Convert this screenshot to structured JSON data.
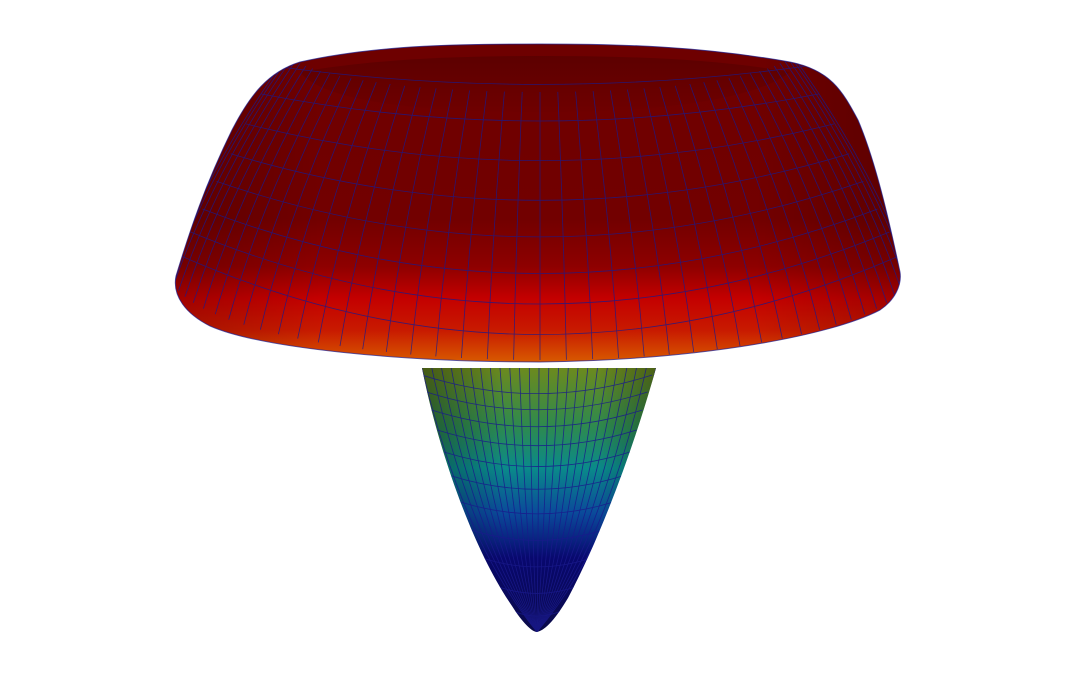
{
  "scene": {
    "background": "#ffffff",
    "colors": {
      "rim_top": "#6b0000",
      "rim_mid": "#7a0000",
      "rim_band": "#c80000",
      "rim_bottom_edge": "#d84a00",
      "well_top": "#6c8a1e",
      "well_mid": "#0a8a8a",
      "well_low": "#08086e",
      "well_tip": "#0a0a48",
      "mesh_line": "#1a1a8c"
    },
    "surface": "3d-mesh-plot",
    "colormap": "jet"
  }
}
